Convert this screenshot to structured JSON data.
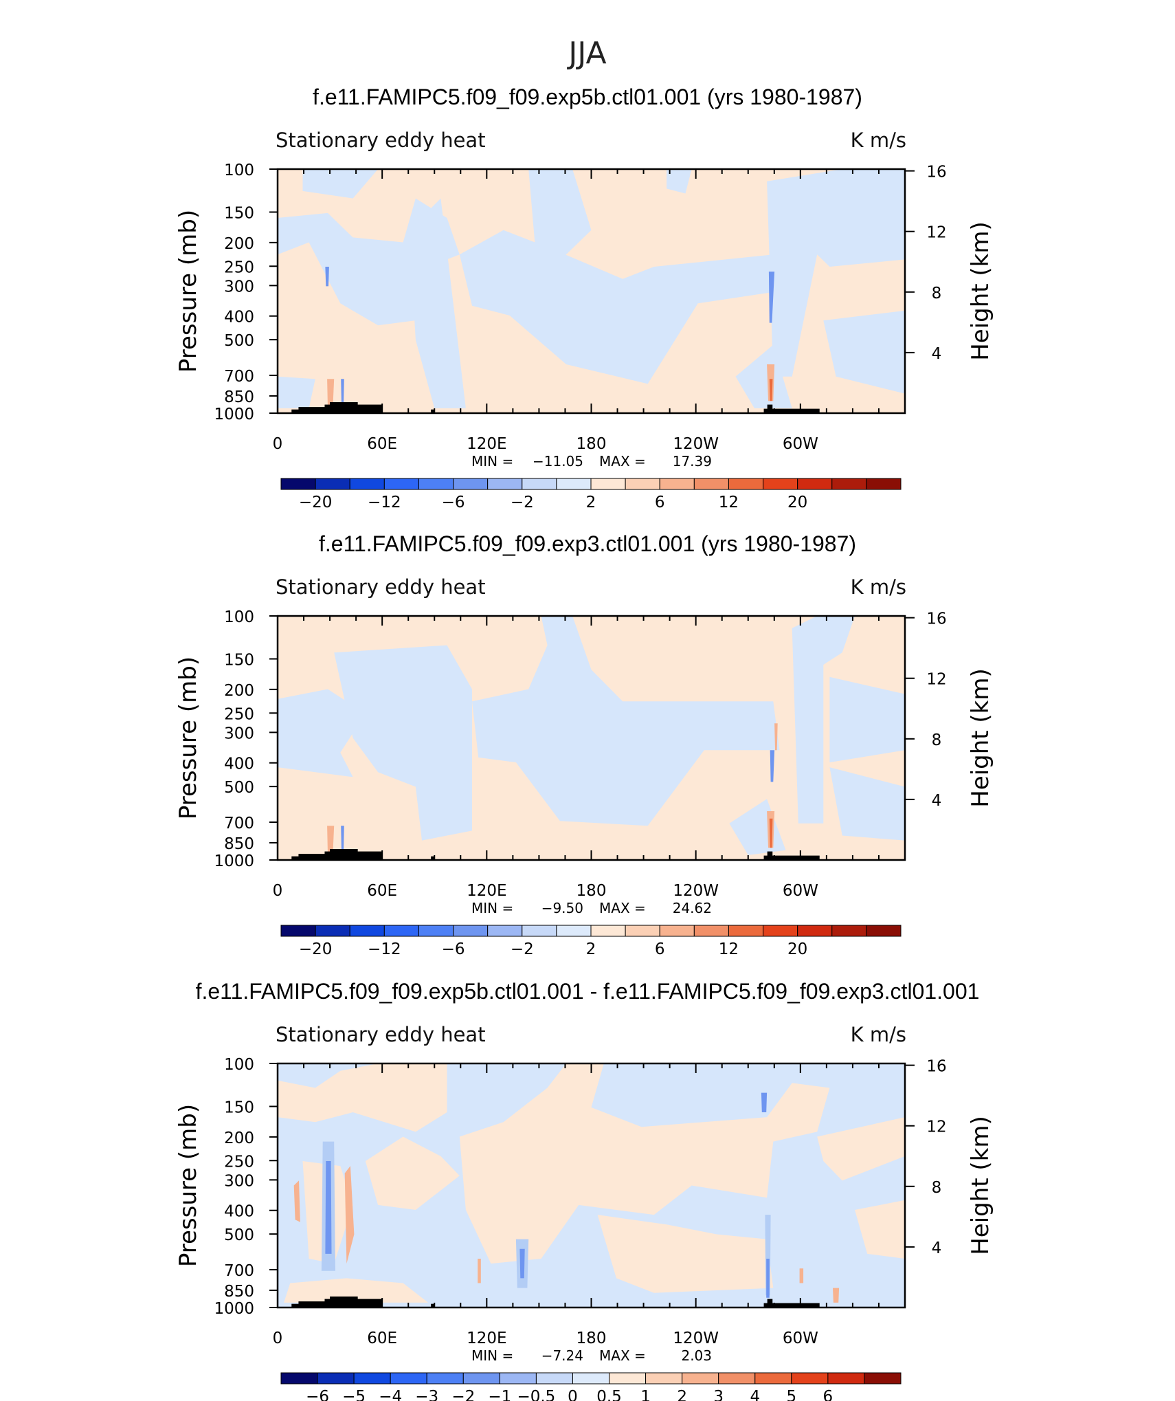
{
  "page": {
    "title": "JJA"
  },
  "panels": [
    {
      "title": "f.e11.FAMIPC5.f09_f09.exp5b.ctl01.001 (yrs 1980-1987)",
      "left_string": "Stationary eddy heat",
      "right_string": "K m/s",
      "ylabel": "Pressure (mb)",
      "y2label": "Height (km)",
      "min_label": "MIN =",
      "min_value": "−11.05",
      "max_label": "MAX =",
      "max_value": "17.39"
    },
    {
      "title": "f.e11.FAMIPC5.f09_f09.exp3.ctl01.001 (yrs 1980-1987)",
      "left_string": "Stationary eddy heat",
      "right_string": "K m/s",
      "ylabel": "Pressure (mb)",
      "y2label": "Height (km)",
      "min_label": "MIN =",
      "min_value": "−9.50",
      "max_label": "MAX =",
      "max_value": "24.62"
    },
    {
      "title": "f.e11.FAMIPC5.f09_f09.exp5b.ctl01.001 - f.e11.FAMIPC5.f09_f09.exp3.ctl01.001",
      "left_string": "Stationary eddy heat",
      "right_string": "K m/s",
      "ylabel": "Pressure (mb)",
      "y2label": "Height (km)",
      "min_label": "MIN =",
      "min_value": "−7.24",
      "max_label": "MAX =",
      "max_value": "2.03"
    }
  ],
  "chart_data": [
    {
      "type": "heatmap",
      "title": "f.e11.FAMIPC5.f09_f09.exp5b.ctl01.001 (yrs 1980-1987)",
      "x_ticks": [
        "0",
        "60E",
        "120E",
        "180",
        "120W",
        "60W"
      ],
      "x_range_deg": [
        0,
        360
      ],
      "y_ticks": [
        "100",
        "150",
        "200",
        "250",
        "300",
        "400",
        "500",
        "700",
        "850",
        "1000"
      ],
      "y_range_mb": [
        1000,
        100
      ],
      "y_log_scale": true,
      "y2_ticks": [
        "4",
        "8",
        "12",
        "16"
      ],
      "colorbar_labels": [
        "−20",
        "−12",
        "−6",
        "−2",
        "2",
        "6",
        "12",
        "20"
      ],
      "colorbar_colors": [
        "#05086c",
        "#0a2db5",
        "#1048e0",
        "#2d66f5",
        "#4d80f5",
        "#6e95f0",
        "#9cb7f4",
        "#c7d9f8",
        "#ddeafb",
        "#fde8d6",
        "#fbd0b5",
        "#f7b28f",
        "#f19068",
        "#eb6a3c",
        "#e4421b",
        "#d02a10",
        "#ac1c0b",
        "#8a0e05"
      ],
      "min": -11.05,
      "max": 17.39
    },
    {
      "type": "heatmap",
      "title": "f.e11.FAMIPC5.f09_f09.exp3.ctl01.001 (yrs 1980-1987)",
      "x_ticks": [
        "0",
        "60E",
        "120E",
        "180",
        "120W",
        "60W"
      ],
      "x_range_deg": [
        0,
        360
      ],
      "y_ticks": [
        "100",
        "150",
        "200",
        "250",
        "300",
        "400",
        "500",
        "700",
        "850",
        "1000"
      ],
      "y_range_mb": [
        1000,
        100
      ],
      "y_log_scale": true,
      "y2_ticks": [
        "4",
        "8",
        "12",
        "16"
      ],
      "colorbar_labels": [
        "−20",
        "−12",
        "−6",
        "−2",
        "2",
        "6",
        "12",
        "20"
      ],
      "colorbar_colors": [
        "#05086c",
        "#0a2db5",
        "#1048e0",
        "#2d66f5",
        "#4d80f5",
        "#6e95f0",
        "#9cb7f4",
        "#c7d9f8",
        "#ddeafb",
        "#fde8d6",
        "#fbd0b5",
        "#f7b28f",
        "#f19068",
        "#eb6a3c",
        "#e4421b",
        "#d02a10",
        "#ac1c0b",
        "#8a0e05"
      ],
      "min": -9.5,
      "max": 24.62
    },
    {
      "type": "heatmap",
      "title": "f.e11.FAMIPC5.f09_f09.exp5b.ctl01.001 - f.e11.FAMIPC5.f09_f09.exp3.ctl01.001",
      "x_ticks": [
        "0",
        "60E",
        "120E",
        "180",
        "120W",
        "60W"
      ],
      "x_range_deg": [
        0,
        360
      ],
      "y_ticks": [
        "100",
        "150",
        "200",
        "250",
        "300",
        "400",
        "500",
        "700",
        "850",
        "1000"
      ],
      "y_range_mb": [
        1000,
        100
      ],
      "y_log_scale": true,
      "y2_ticks": [
        "4",
        "8",
        "12",
        "16"
      ],
      "colorbar_labels": [
        "−6",
        "−5",
        "−4",
        "−3",
        "−2",
        "−1",
        "−0.5",
        "0",
        "0.5",
        "1",
        "2",
        "3",
        "4",
        "5",
        "6"
      ],
      "colorbar_colors": [
        "#05086c",
        "#0a2db5",
        "#1048e0",
        "#2d66f5",
        "#4d80f5",
        "#6e95f0",
        "#9cb7f4",
        "#c7d9f8",
        "#ddeafb",
        "#fde8d6",
        "#fbd0b5",
        "#f7b28f",
        "#f19068",
        "#eb6a3c",
        "#e4421b",
        "#d02a10",
        "#8a0e05"
      ],
      "min": -7.24,
      "max": 2.03
    }
  ]
}
